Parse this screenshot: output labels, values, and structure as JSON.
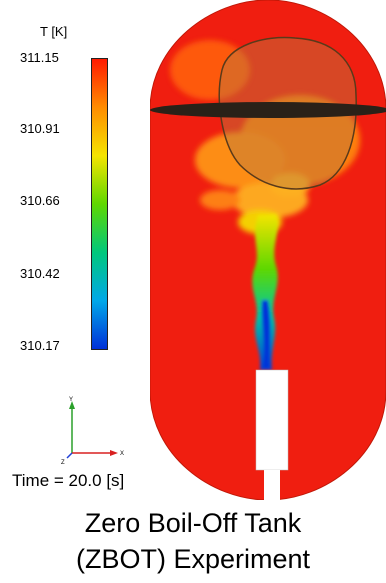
{
  "colorbar": {
    "title": "T [K]",
    "ticks": [
      "311.15",
      "310.91",
      "310.66",
      "310.42",
      "310.17"
    ],
    "colors": [
      "#ff1a00",
      "#ff8c00",
      "#f5e400",
      "#5fd800",
      "#00c87c",
      "#00a8e8",
      "#0030d8"
    ]
  },
  "axes": {
    "y_label": "Y",
    "x_label": "X",
    "z_label": "Z"
  },
  "time_label": "Time = 20.0 [s]",
  "caption": {
    "line1": "Zero Boil-Off Tank",
    "line2": "(ZBOT) Experiment"
  }
}
